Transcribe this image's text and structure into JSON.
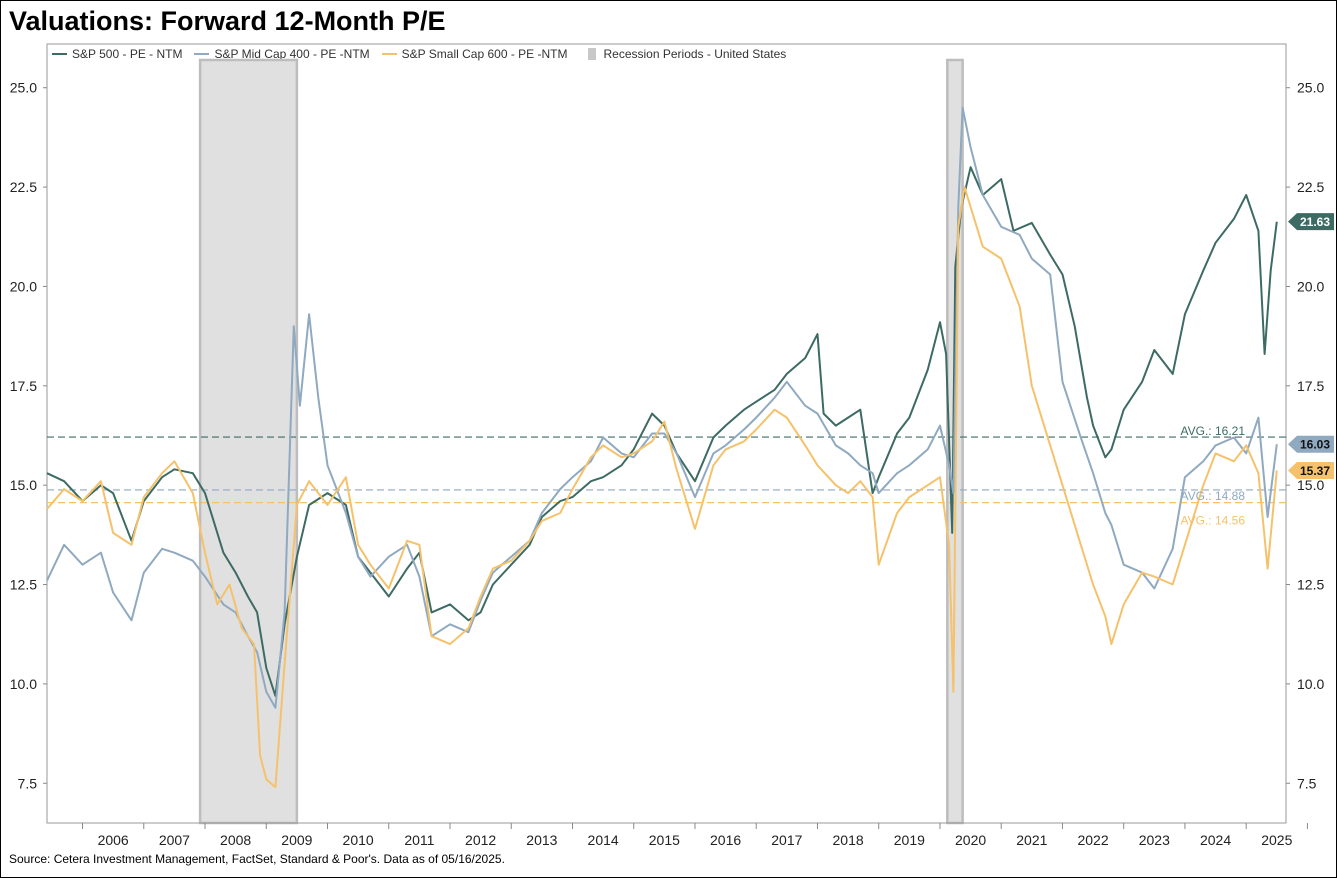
{
  "title": "Valuations: Forward 12-Month P/E",
  "source": "Source: Cetera Investment Management, FactSet, Standard & Poor's. Data as of 05/16/2025.",
  "colors": {
    "sp500": "#3D6B64",
    "midcap": "#8FA9C0",
    "smallcap": "#F5C26B",
    "recession": "#D9D9D9",
    "axis": "#888888"
  },
  "chart_data": {
    "type": "line",
    "title": "Valuations: Forward 12-Month P/E",
    "xlabel": "",
    "ylabel": "",
    "xlim": [
      2005.42,
      2025.65
    ],
    "ylim": [
      6.5,
      26.1
    ],
    "x_ticks": [
      "2006",
      "2007",
      "2008",
      "2009",
      "2010",
      "2011",
      "2012",
      "2013",
      "2014",
      "2015",
      "2016",
      "2017",
      "2018",
      "2019",
      "2020",
      "2021",
      "2022",
      "2023",
      "2024",
      "2025"
    ],
    "y_ticks": [
      "7.5",
      "10.0",
      "12.5",
      "15.0",
      "17.5",
      "20.0",
      "22.5",
      "25.0"
    ],
    "legend": [
      {
        "key": "sp500",
        "label": "S&P 500 - PE - NTM"
      },
      {
        "key": "midcap",
        "label": "S&P Mid Cap 400 - PE -NTM"
      },
      {
        "key": "smallcap",
        "label": "S&P Small Cap 600 - PE -NTM"
      },
      {
        "key": "recession",
        "label": "Recession Periods - United States"
      }
    ],
    "recessions": [
      [
        2007.92,
        2009.5
      ],
      [
        2020.12,
        2020.37
      ]
    ],
    "averages": [
      {
        "key": "sp500",
        "label": "AVG.: 16.21",
        "value": 16.21
      },
      {
        "key": "midcap",
        "label": "AVG.: 14.88",
        "value": 14.88
      },
      {
        "key": "smallcap",
        "label": "AVG.: 14.56",
        "value": 14.56
      }
    ],
    "last_values": [
      {
        "key": "sp500",
        "label": "21.63",
        "value": 21.63
      },
      {
        "key": "midcap",
        "label": "16.03",
        "value": 16.03
      },
      {
        "key": "smallcap",
        "label": "15.37",
        "value": 15.37
      }
    ],
    "series": [
      {
        "name": "S&P 500 - PE - NTM",
        "key": "sp500",
        "x": [
          2005.42,
          2005.7,
          2006.0,
          2006.3,
          2006.5,
          2006.8,
          2007.0,
          2007.3,
          2007.5,
          2007.8,
          2008.0,
          2008.3,
          2008.5,
          2008.7,
          2008.85,
          2009.0,
          2009.15,
          2009.3,
          2009.5,
          2009.7,
          2010.0,
          2010.3,
          2010.5,
          2010.7,
          2011.0,
          2011.3,
          2011.5,
          2011.7,
          2012.0,
          2012.3,
          2012.5,
          2012.7,
          2013.0,
          2013.3,
          2013.5,
          2013.8,
          2014.0,
          2014.3,
          2014.5,
          2014.8,
          2015.0,
          2015.3,
          2015.5,
          2015.7,
          2016.0,
          2016.3,
          2016.5,
          2016.8,
          2017.0,
          2017.3,
          2017.5,
          2017.8,
          2018.0,
          2018.1,
          2018.3,
          2018.5,
          2018.7,
          2018.9,
          2019.0,
          2019.3,
          2019.5,
          2019.8,
          2020.0,
          2020.1,
          2020.2,
          2020.25,
          2020.35,
          2020.5,
          2020.7,
          2021.0,
          2021.2,
          2021.5,
          2021.8,
          2022.0,
          2022.2,
          2022.4,
          2022.5,
          2022.7,
          2022.8,
          2023.0,
          2023.3,
          2023.5,
          2023.8,
          2024.0,
          2024.3,
          2024.5,
          2024.8,
          2025.0,
          2025.2,
          2025.3,
          2025.4,
          2025.5
        ],
        "y": [
          15.3,
          15.1,
          14.6,
          15.0,
          14.8,
          13.6,
          14.6,
          15.2,
          15.4,
          15.3,
          14.8,
          13.3,
          12.8,
          12.2,
          11.8,
          10.4,
          9.7,
          11.5,
          13.2,
          14.5,
          14.8,
          14.5,
          13.2,
          12.8,
          12.2,
          12.9,
          13.3,
          11.8,
          12.0,
          11.6,
          11.8,
          12.5,
          13.0,
          13.5,
          14.2,
          14.6,
          14.7,
          15.1,
          15.2,
          15.5,
          15.9,
          16.8,
          16.5,
          15.8,
          15.1,
          16.2,
          16.5,
          16.9,
          17.1,
          17.4,
          17.8,
          18.2,
          18.8,
          16.8,
          16.5,
          16.7,
          16.9,
          14.8,
          15.2,
          16.3,
          16.7,
          17.9,
          19.1,
          18.3,
          13.8,
          20.5,
          22.0,
          23.0,
          22.3,
          22.7,
          21.4,
          21.6,
          20.8,
          20.3,
          19.0,
          17.2,
          16.5,
          15.7,
          15.9,
          16.9,
          17.6,
          18.4,
          17.8,
          19.3,
          20.4,
          21.1,
          21.7,
          22.3,
          21.4,
          18.3,
          20.4,
          21.63
        ]
      },
      {
        "name": "S&P Mid Cap 400 - PE -NTM",
        "key": "midcap",
        "x": [
          2005.42,
          2005.7,
          2006.0,
          2006.3,
          2006.5,
          2006.8,
          2007.0,
          2007.3,
          2007.5,
          2007.8,
          2008.0,
          2008.3,
          2008.5,
          2008.7,
          2008.85,
          2009.0,
          2009.15,
          2009.3,
          2009.45,
          2009.55,
          2009.7,
          2009.85,
          2010.0,
          2010.3,
          2010.5,
          2010.7,
          2011.0,
          2011.3,
          2011.5,
          2011.7,
          2012.0,
          2012.3,
          2012.5,
          2012.7,
          2013.0,
          2013.3,
          2013.5,
          2013.8,
          2014.0,
          2014.3,
          2014.5,
          2014.8,
          2015.0,
          2015.3,
          2015.5,
          2015.7,
          2016.0,
          2016.3,
          2016.5,
          2016.8,
          2017.0,
          2017.3,
          2017.5,
          2017.8,
          2018.0,
          2018.3,
          2018.5,
          2018.7,
          2018.9,
          2019.0,
          2019.3,
          2019.5,
          2019.8,
          2020.0,
          2020.15,
          2020.22,
          2020.3,
          2020.37,
          2020.5,
          2020.7,
          2021.0,
          2021.3,
          2021.5,
          2021.8,
          2022.0,
          2022.3,
          2022.5,
          2022.7,
          2022.8,
          2023.0,
          2023.3,
          2023.5,
          2023.8,
          2024.0,
          2024.3,
          2024.5,
          2024.8,
          2025.0,
          2025.2,
          2025.35,
          2025.5
        ],
        "y": [
          12.6,
          13.5,
          13.0,
          13.3,
          12.3,
          11.6,
          12.8,
          13.4,
          13.3,
          13.1,
          12.7,
          12.0,
          11.8,
          11.2,
          10.8,
          9.8,
          9.4,
          11.8,
          19.0,
          17.0,
          19.3,
          17.2,
          15.5,
          14.3,
          13.2,
          12.7,
          13.2,
          13.5,
          12.7,
          11.2,
          11.5,
          11.3,
          12.1,
          12.8,
          13.2,
          13.6,
          14.3,
          14.9,
          15.2,
          15.6,
          16.2,
          15.8,
          15.7,
          16.3,
          16.3,
          15.8,
          14.7,
          15.8,
          16.0,
          16.4,
          16.7,
          17.2,
          17.6,
          17.0,
          16.8,
          16.0,
          15.8,
          15.5,
          15.3,
          14.8,
          15.3,
          15.5,
          15.9,
          16.5,
          15.5,
          14.8,
          22.0,
          24.5,
          23.5,
          22.3,
          21.5,
          21.3,
          20.7,
          20.3,
          17.6,
          16.2,
          15.3,
          14.3,
          14.0,
          13.0,
          12.8,
          12.4,
          13.4,
          15.2,
          15.6,
          16.0,
          16.2,
          15.8,
          16.7,
          14.2,
          16.03
        ]
      },
      {
        "name": "S&P Small Cap 600 - PE -NTM",
        "key": "smallcap",
        "x": [
          2005.42,
          2005.7,
          2006.0,
          2006.3,
          2006.5,
          2006.8,
          2007.0,
          2007.3,
          2007.5,
          2007.8,
          2008.0,
          2008.2,
          2008.4,
          2008.6,
          2008.8,
          2008.9,
          2009.0,
          2009.15,
          2009.3,
          2009.5,
          2009.7,
          2010.0,
          2010.3,
          2010.5,
          2010.7,
          2011.0,
          2011.3,
          2011.5,
          2011.7,
          2012.0,
          2012.3,
          2012.5,
          2012.7,
          2013.0,
          2013.3,
          2013.5,
          2013.8,
          2014.0,
          2014.3,
          2014.5,
          2014.8,
          2015.0,
          2015.3,
          2015.5,
          2015.7,
          2016.0,
          2016.3,
          2016.5,
          2016.8,
          2017.0,
          2017.3,
          2017.5,
          2017.8,
          2018.0,
          2018.3,
          2018.5,
          2018.7,
          2018.9,
          2019.0,
          2019.3,
          2019.5,
          2019.8,
          2020.0,
          2020.15,
          2020.22,
          2020.3,
          2020.4,
          2020.5,
          2020.7,
          2021.0,
          2021.3,
          2021.5,
          2021.8,
          2022.0,
          2022.3,
          2022.5,
          2022.7,
          2022.8,
          2023.0,
          2023.3,
          2023.5,
          2023.8,
          2024.0,
          2024.3,
          2024.5,
          2024.8,
          2025.0,
          2025.2,
          2025.35,
          2025.5
        ],
        "y": [
          14.4,
          14.9,
          14.6,
          15.1,
          13.8,
          13.5,
          14.7,
          15.3,
          15.6,
          14.8,
          13.3,
          12.0,
          12.5,
          11.4,
          11.0,
          8.2,
          7.6,
          7.4,
          10.5,
          14.5,
          15.1,
          14.5,
          15.2,
          13.5,
          13.0,
          12.4,
          13.6,
          13.5,
          11.2,
          11.0,
          11.4,
          12.2,
          12.9,
          13.1,
          13.6,
          14.1,
          14.3,
          14.9,
          15.7,
          16.0,
          15.7,
          15.8,
          16.1,
          16.6,
          15.4,
          13.9,
          15.5,
          15.9,
          16.1,
          16.4,
          16.9,
          16.7,
          16.0,
          15.5,
          15.0,
          14.8,
          15.1,
          14.7,
          13.0,
          14.3,
          14.7,
          15.0,
          15.2,
          13.5,
          9.8,
          21.5,
          22.5,
          22.0,
          21.0,
          20.7,
          19.5,
          17.5,
          16.0,
          15.0,
          13.5,
          12.5,
          11.7,
          11.0,
          12.0,
          12.8,
          12.7,
          12.5,
          13.5,
          15.0,
          15.8,
          15.6,
          16.0,
          15.3,
          12.9,
          15.37
        ]
      }
    ]
  }
}
